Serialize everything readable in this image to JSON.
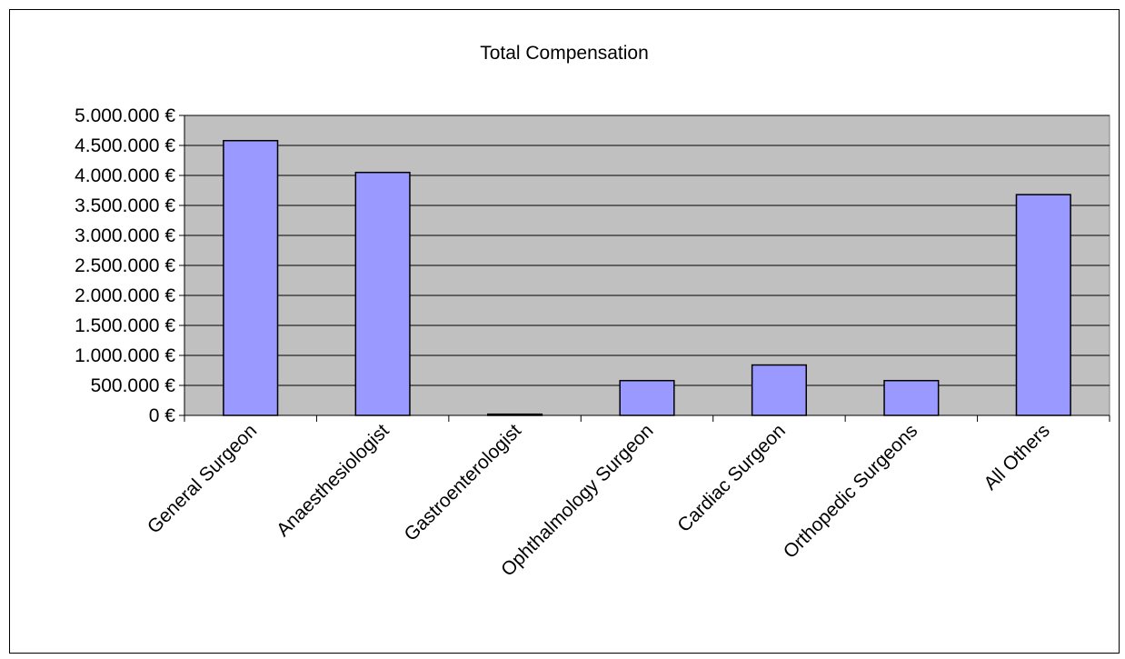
{
  "chart_data": {
    "type": "bar",
    "title": "Total Compensation",
    "xlabel": "",
    "ylabel": "",
    "categories": [
      "General Surgeon",
      "Anaesthesiologist",
      "Gastroenterologist",
      "Ophthalmology Surgeon",
      "Cardiac Surgeon",
      "Orthopedic Surgeons",
      "All Others"
    ],
    "values": [
      4580000,
      4050000,
      20000,
      580000,
      840000,
      580000,
      3680000
    ],
    "ylim": [
      0,
      5000000
    ],
    "yticks": [
      0,
      500000,
      1000000,
      1500000,
      2000000,
      2500000,
      3000000,
      3500000,
      4000000,
      4500000,
      5000000
    ],
    "ytick_labels": [
      "0 €",
      "500.000 €",
      "1.000.000 €",
      "1.500.000 €",
      "2.000.000 €",
      "2.500.000 €",
      "3.000.000 €",
      "3.500.000 €",
      "4.000.000 €",
      "4.500.000 €",
      "5.000.000 €"
    ],
    "grid": true,
    "legend": "none",
    "colors": {
      "plot_background": "#c0c0c0",
      "bar_fill": "#9999ff",
      "bar_stroke": "#000000",
      "gridline": "#000000"
    }
  }
}
